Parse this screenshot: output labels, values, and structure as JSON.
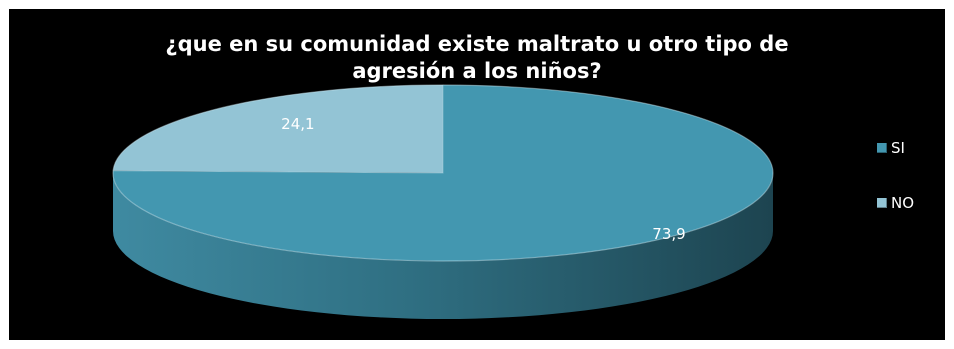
{
  "chart_data": {
    "type": "pie",
    "title_lines": [
      "¿que en su comunidad existe maltrato u otro tipo de",
      "agresión a los niños?"
    ],
    "categories": [
      "SI",
      "NO"
    ],
    "values": [
      73.9,
      24.1
    ],
    "labels": [
      "73,9",
      "24,1"
    ],
    "colors": [
      "#4397b0",
      "#93c4d5"
    ],
    "legend_position": "right",
    "style": "3d"
  }
}
